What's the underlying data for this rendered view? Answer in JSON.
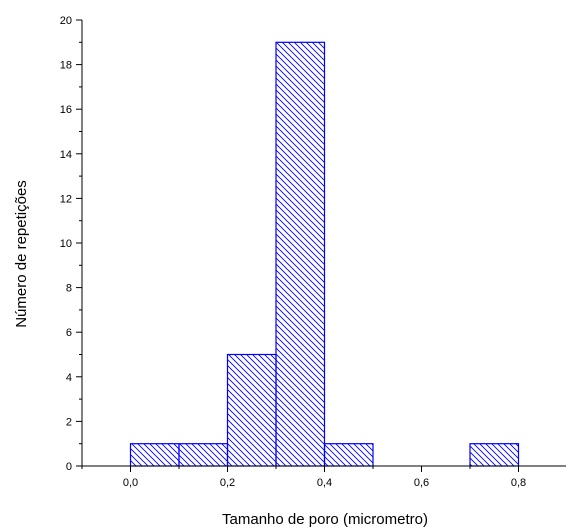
{
  "chart_data": {
    "type": "bar",
    "title": "",
    "xlabel": "Tamanho de poro (micrometro)",
    "ylabel": "Número de repetições",
    "bins": [
      {
        "start": 0.0,
        "end": 0.1,
        "value": 1
      },
      {
        "start": 0.1,
        "end": 0.2,
        "value": 1
      },
      {
        "start": 0.2,
        "end": 0.3,
        "value": 5
      },
      {
        "start": 0.3,
        "end": 0.4,
        "value": 19
      },
      {
        "start": 0.4,
        "end": 0.5,
        "value": 1
      },
      {
        "start": 0.7,
        "end": 0.8,
        "value": 1
      }
    ],
    "xlim": [
      -0.1,
      0.9
    ],
    "ylim": [
      0,
      20
    ],
    "xticks": [
      0.0,
      0.2,
      0.4,
      0.6,
      0.8
    ],
    "xtick_labels": [
      "0,0",
      "0,2",
      "0,4",
      "0,6",
      "0,8"
    ],
    "yticks": [
      0,
      2,
      4,
      6,
      8,
      10,
      12,
      14,
      16,
      18,
      20
    ],
    "ytick_labels": [
      "0",
      "2",
      "4",
      "6",
      "8",
      "10",
      "12",
      "14",
      "16",
      "18",
      "20"
    ],
    "bar_color": "#0000ff",
    "bar_fill": "diagonal-hatch",
    "grid": false,
    "legend": "none"
  }
}
